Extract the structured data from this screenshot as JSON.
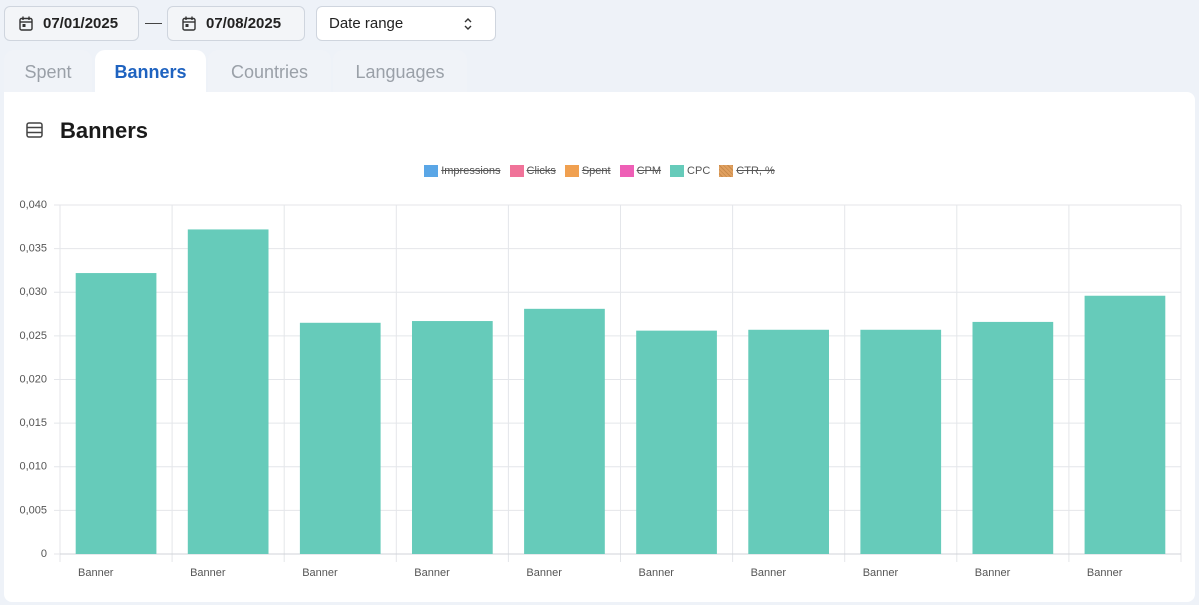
{
  "toolbar": {
    "date_from": "07/01/2025",
    "date_to": "07/08/2025",
    "range_select": "Date range"
  },
  "tabs": [
    {
      "label": "Spent"
    },
    {
      "label": "Banners",
      "active": true
    },
    {
      "label": "Countries"
    },
    {
      "label": "Languages"
    }
  ],
  "panel": {
    "title": "Banners"
  },
  "chart_data": {
    "type": "bar",
    "categories": [
      "Banner",
      "Banner",
      "Banner",
      "Banner",
      "Banner",
      "Banner",
      "Banner",
      "Banner",
      "Banner",
      "Banner"
    ],
    "series": [
      {
        "name": "Impressions",
        "color": "#5aa6e6",
        "hidden": true
      },
      {
        "name": "Clicks",
        "color": "#f07399",
        "hidden": true
      },
      {
        "name": "Spent",
        "color": "#f0a050",
        "hidden": true
      },
      {
        "name": "CPM",
        "color": "#ee5fb6",
        "hidden": true
      },
      {
        "name": "CPC",
        "color": "#66cbba",
        "values": [
          0.0322,
          0.0372,
          0.0265,
          0.0267,
          0.0281,
          0.0256,
          0.0257,
          0.0257,
          0.0266,
          0.0296
        ]
      },
      {
        "name": "CTR, %",
        "color": "#e0a060",
        "hidden": true,
        "pattern": true
      }
    ],
    "ylim": [
      0,
      0.04
    ],
    "yticks": [
      0,
      {
        "value": 0.005,
        "label": "0,005"
      },
      {
        "value": 0.01,
        "label": "0,010"
      },
      {
        "value": 0.015,
        "label": "0,015"
      },
      {
        "value": 0.02,
        "label": "0,020"
      },
      {
        "value": 0.025,
        "label": "0,025"
      },
      {
        "value": 0.03,
        "label": "0,030"
      },
      {
        "value": 0.035,
        "label": "0,035"
      },
      {
        "value": 0.04,
        "label": "0,040"
      }
    ],
    "grid": true,
    "legend": "top"
  }
}
